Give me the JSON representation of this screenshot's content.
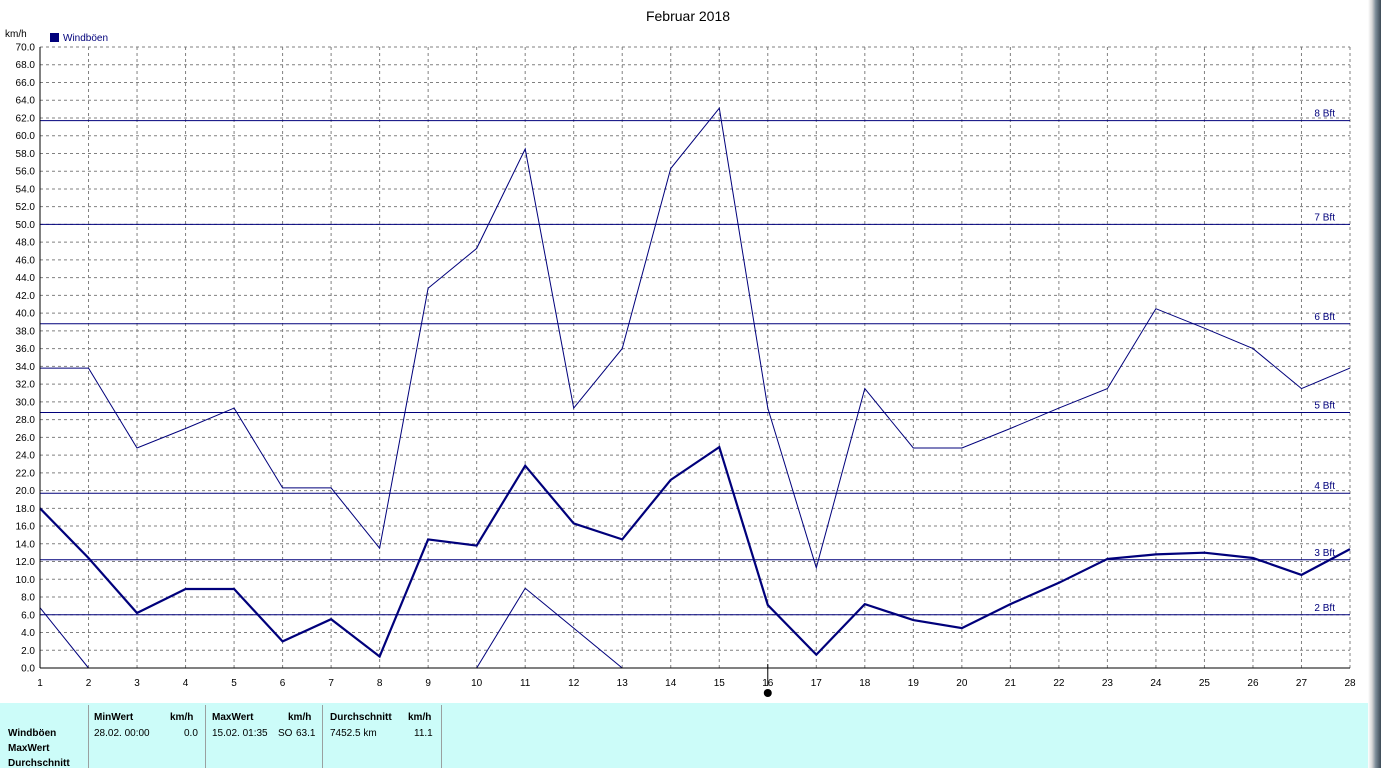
{
  "chart_data": {
    "type": "line",
    "title": "Februar 2018",
    "ylabel": "km/h",
    "ylim": [
      0,
      70
    ],
    "xlim": [
      1,
      28
    ],
    "y_ticks": [
      "0.0",
      "2.0",
      "4.0",
      "6.0",
      "8.0",
      "10.0",
      "12.0",
      "14.0",
      "16.0",
      "18.0",
      "20.0",
      "22.0",
      "24.0",
      "26.0",
      "28.0",
      "30.0",
      "32.0",
      "34.0",
      "36.0",
      "38.0",
      "40.0",
      "42.0",
      "44.0",
      "46.0",
      "48.0",
      "50.0",
      "52.0",
      "54.0",
      "56.0",
      "58.0",
      "60.0",
      "62.0",
      "64.0",
      "66.0",
      "68.0",
      "70.0"
    ],
    "x_ticks": [
      "1",
      "2",
      "3",
      "4",
      "5",
      "6",
      "7",
      "8",
      "9",
      "10",
      "11",
      "12",
      "13",
      "14",
      "15",
      "16",
      "17",
      "18",
      "19",
      "20",
      "21",
      "22",
      "23",
      "24",
      "25",
      "26",
      "27",
      "28"
    ],
    "legend": [
      "Windböen"
    ],
    "legend_position": "top-left",
    "grid": true,
    "beaufort_lines": [
      {
        "label": "2 Bft",
        "value": 6.0
      },
      {
        "label": "3 Bft",
        "value": 12.2
      },
      {
        "label": "4 Bft",
        "value": 19.7
      },
      {
        "label": "5 Bft",
        "value": 28.8
      },
      {
        "label": "6 Bft",
        "value": 38.8
      },
      {
        "label": "7 Bft",
        "value": 50.0
      },
      {
        "label": "8 Bft",
        "value": 61.7
      }
    ],
    "series": [
      {
        "role": "max",
        "x": [
          1,
          2,
          3,
          4,
          5,
          6,
          7,
          8,
          9,
          10,
          11,
          12,
          13,
          14,
          15,
          16,
          17,
          18,
          19,
          20,
          21,
          22,
          23,
          24,
          25,
          26,
          27,
          28
        ],
        "values": [
          33.8,
          33.8,
          24.8,
          27.0,
          29.3,
          20.3,
          20.3,
          13.5,
          42.8,
          47.3,
          58.5,
          29.3,
          36.0,
          56.3,
          63.1,
          29.3,
          11.3,
          31.5,
          24.8,
          24.8,
          27.0,
          29.3,
          31.5,
          40.5,
          38.3,
          36.0,
          31.5,
          33.8
        ]
      },
      {
        "role": "avg",
        "x": [
          1,
          2,
          3,
          4,
          5,
          6,
          7,
          8,
          9,
          10,
          11,
          12,
          13,
          14,
          15,
          16,
          17,
          18,
          19,
          20,
          21,
          22,
          23,
          24,
          25,
          26,
          27,
          28
        ],
        "values": [
          18.0,
          12.4,
          6.2,
          8.9,
          8.9,
          3.0,
          5.5,
          1.3,
          14.5,
          13.8,
          22.8,
          16.3,
          14.5,
          21.2,
          24.9,
          7.1,
          1.5,
          7.2,
          5.4,
          4.5,
          7.2,
          9.6,
          12.3,
          12.8,
          13.0,
          12.4,
          10.5,
          13.4
        ]
      },
      {
        "role": "min",
        "x": [
          1,
          2,
          10,
          11,
          13
        ],
        "values": [
          6.8,
          0.0,
          0.0,
          9.0,
          0.0
        ]
      }
    ]
  },
  "colors": {
    "line": "#00007b",
    "grid": "#808080",
    "panel": "#ccfcf9"
  },
  "stats": {
    "col_labels": [
      "Windböen",
      "MaxWert",
      "Durchschnitt"
    ],
    "min_header": "MinWert",
    "min_unit": "km/h",
    "min_date": "28.02.  00:00",
    "min_value": "0.0",
    "max_header": "MaxWert",
    "max_unit": "km/h",
    "max_date": "15.02.  01:35",
    "max_dir": "SO",
    "max_value": "63.1",
    "avg_header": "Durchschnitt",
    "avg_unit": "km/h",
    "avg_km": "7452.5 km",
    "avg_value": "11.1"
  }
}
